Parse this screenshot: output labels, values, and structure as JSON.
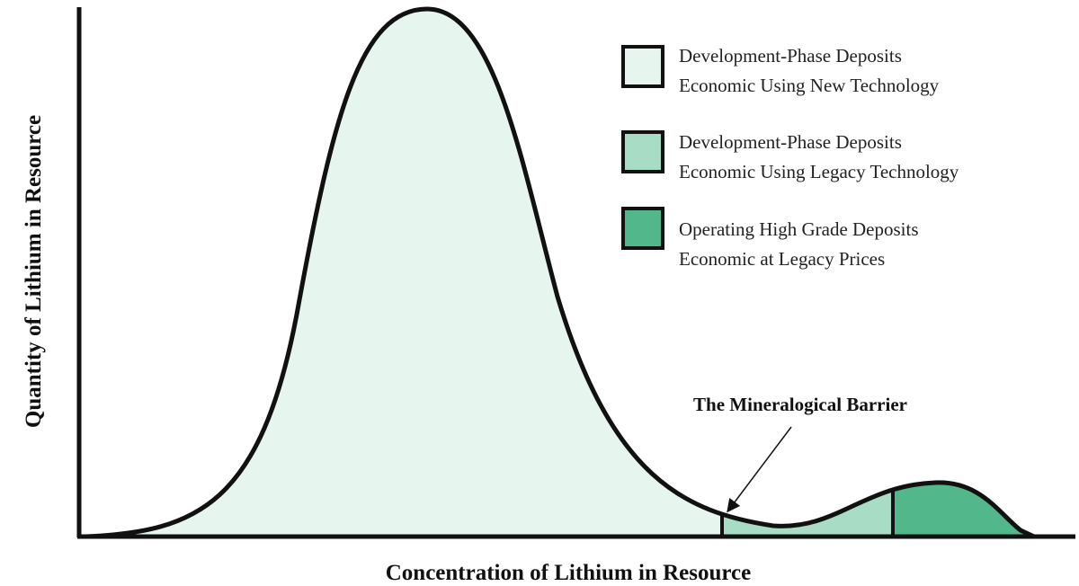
{
  "y_axis_label": "Quantity of Lithium in Resource",
  "x_axis_label": "Concentration of Lithium in Resource",
  "annotation": "The Mineralogical Barrier",
  "legend": [
    {
      "lines": [
        "Development-Phase Deposits",
        "Economic Using New Technology"
      ]
    },
    {
      "lines": [
        "Development-Phase Deposits",
        "Economic Using Legacy Technology"
      ]
    },
    {
      "lines": [
        "Operating High Grade Deposits",
        "Economic at Legacy Prices"
      ]
    }
  ]
}
